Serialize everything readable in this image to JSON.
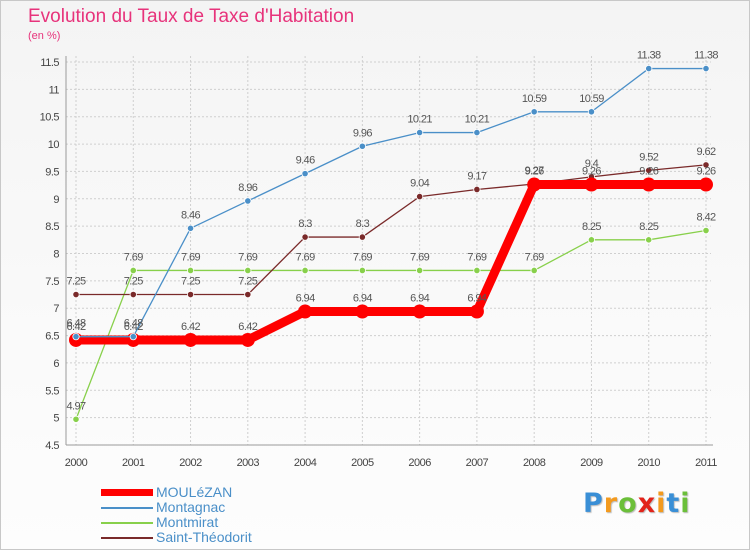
{
  "chart_data": {
    "type": "line",
    "title": "Evolution du Taux de Taxe d'Habitation",
    "subtitle": "(en %)",
    "x": [
      "2000",
      "2001",
      "2002",
      "2003",
      "2004",
      "2005",
      "2006",
      "2007",
      "2008",
      "2009",
      "2010",
      "2011"
    ],
    "yticks": [
      "4.5",
      "5",
      "5.5",
      "6",
      "6.5",
      "7",
      "7.5",
      "8",
      "8.5",
      "9",
      "9.5",
      "10",
      "10.5",
      "11",
      "11.5"
    ],
    "ylim": [
      4.5,
      11.5
    ],
    "grid": true,
    "legend_position": "bottom-left",
    "series": [
      {
        "name": "MOULéZAN",
        "color": "#ff0000",
        "values": [
          6.42,
          6.42,
          6.42,
          6.42,
          6.94,
          6.94,
          6.94,
          6.94,
          9.26,
          9.26,
          9.26,
          9.26
        ],
        "labels": [
          "6.42",
          "6.42",
          "6.42",
          "6.42",
          "6.94",
          "6.94",
          "6.94",
          "6.94",
          "9.26",
          "9.26",
          "9.26",
          "9.26"
        ]
      },
      {
        "name": "Montagnac",
        "color": "#4a8fc8",
        "values": [
          6.48,
          6.48,
          8.46,
          8.96,
          9.46,
          9.96,
          10.21,
          10.21,
          10.59,
          10.59,
          11.38,
          11.38
        ],
        "labels": [
          "6.48",
          "6.48",
          "8.46",
          "8.96",
          "9.46",
          "9.96",
          "10.21",
          "10.21",
          "10.59",
          "10.59",
          "11.38",
          "11.38"
        ]
      },
      {
        "name": "Montmirat",
        "color": "#88d04b",
        "values": [
          4.97,
          7.69,
          7.69,
          7.69,
          7.69,
          7.69,
          7.69,
          7.69,
          7.69,
          8.25,
          8.25,
          8.42
        ],
        "labels": [
          "4.97",
          "7.69",
          "7.69",
          "7.69",
          "7.69",
          "7.69",
          "7.69",
          "7.69",
          "7.69",
          "8.25",
          "8.25",
          "8.42"
        ]
      },
      {
        "name": "Saint-Théodorit",
        "color": "#7a2a2a",
        "values": [
          7.25,
          7.25,
          7.25,
          7.25,
          8.3,
          8.3,
          9.04,
          9.17,
          9.27,
          9.4,
          9.52,
          9.62
        ],
        "labels": [
          "7.25",
          "7.25",
          "7.25",
          "7.25",
          "8.3",
          "8.3",
          "9.04",
          "9.17",
          "9.27",
          "9.4",
          "9.52",
          "9.62"
        ]
      }
    ]
  },
  "brand": {
    "letters": [
      "P",
      "r",
      "o",
      "x",
      "i",
      "t",
      "i"
    ],
    "colors": [
      "#3a8fd6",
      "#f39a1e",
      "#6bbf3a",
      "#e2231a",
      "#f39a1e",
      "#3a8fd6",
      "#6bbf3a"
    ]
  }
}
